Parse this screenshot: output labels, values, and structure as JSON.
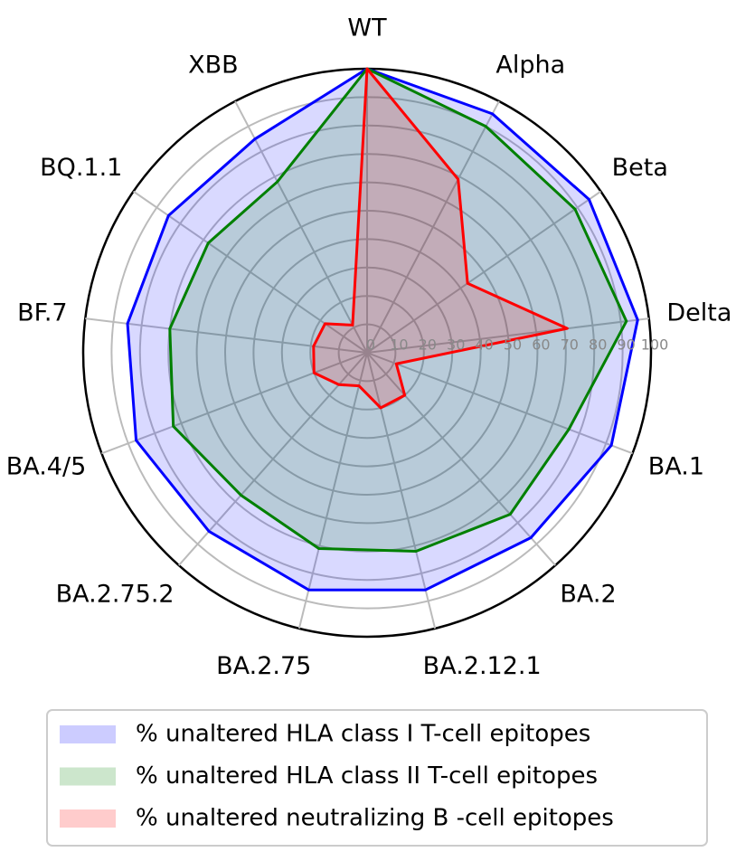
{
  "chart_data": {
    "type": "radar",
    "categories": [
      "WT",
      "Alpha",
      "Beta",
      "Delta",
      "BA.1",
      "BA.2",
      "BA.2.12.1",
      "BA.2.75",
      "BA.2.75.2",
      "BA.4/5",
      "BF.7",
      "BQ.1.1",
      "XBB"
    ],
    "series": [
      {
        "name": "% unaltered HLA class I T-cell epitopes",
        "color": "#0000ff",
        "values": [
          100,
          95,
          95,
          96,
          92,
          87,
          86,
          86,
          84,
          87,
          85,
          85,
          85
        ]
      },
      {
        "name": "% unaltered HLA class II T-cell epitopes",
        "color": "#008000",
        "values": [
          100,
          90,
          89,
          92,
          76,
          76,
          72,
          71,
          67,
          73,
          70,
          68,
          68
        ]
      },
      {
        "name": "% unaltered neutralizing B -cell epitopes",
        "color": "#ff0000",
        "values": [
          100,
          69,
          43,
          71,
          11,
          20,
          20,
          12,
          15,
          20,
          19,
          18,
          11
        ]
      }
    ],
    "rlim": [
      0,
      100
    ],
    "rticks": [
      0,
      10,
      20,
      30,
      40,
      50,
      60,
      70,
      80,
      90,
      100
    ],
    "grid": true
  }
}
